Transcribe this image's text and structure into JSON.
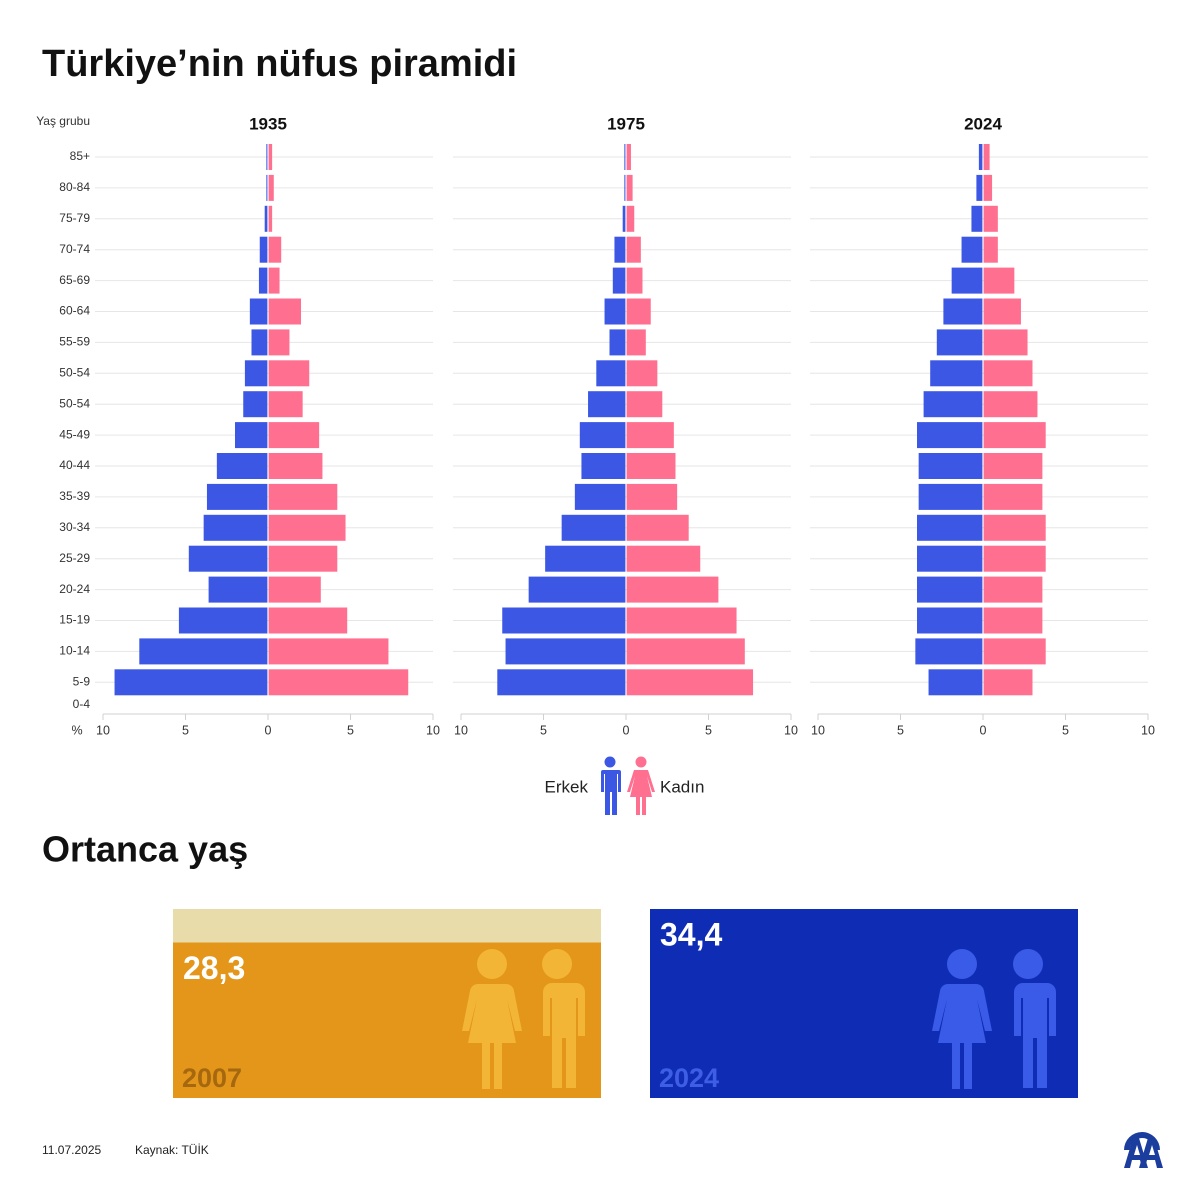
{
  "title": "Türkiye’nin nüfus piramidi",
  "chart_data": [
    {
      "type": "population_pyramid",
      "title": "1935",
      "y_label": "Yaş grubu",
      "x_label": "%",
      "categories": [
        "85+",
        "80-84",
        "75-79",
        "70-74",
        "65-69",
        "60-64",
        "55-59",
        "50-54",
        "50-54",
        "45-49",
        "40-44",
        "35-39",
        "30-34",
        "25-29",
        "20-24",
        "15-19",
        "10-14",
        "5-9",
        "0-4"
      ],
      "series": [
        {
          "name": "Erkek",
          "color": "#3b57e3",
          "values": [
            0.1,
            0.1,
            0.2,
            0.5,
            0.55,
            1.1,
            1.0,
            1.4,
            1.5,
            2.0,
            3.1,
            3.7,
            3.9,
            4.8,
            3.6,
            5.4,
            7.8,
            9.3,
            null
          ]
        },
        {
          "name": "Kadın",
          "color": "#ff7090",
          "values": [
            0.25,
            0.35,
            0.25,
            0.8,
            0.7,
            2.0,
            1.3,
            2.5,
            2.1,
            3.1,
            3.3,
            4.2,
            4.7,
            4.2,
            3.2,
            4.8,
            7.3,
            8.5,
            null
          ]
        }
      ],
      "xlim": [
        -10,
        10
      ],
      "xticks": [
        {
          "value": -10,
          "label": "10"
        },
        {
          "value": -5,
          "label": "5"
        },
        0,
        5,
        10
      ],
      "grid": true
    },
    {
      "type": "population_pyramid",
      "title": "1975",
      "series": [
        {
          "color": "#3b57e3",
          "values": [
            0.1,
            0.1,
            0.2,
            0.7,
            0.8,
            1.3,
            1.0,
            1.8,
            2.3,
            2.8,
            2.7,
            3.1,
            3.9,
            4.9,
            5.9,
            7.5,
            7.3,
            7.8,
            null
          ]
        },
        {
          "color": "#ff7090",
          "values": [
            0.3,
            0.4,
            0.5,
            0.9,
            1.0,
            1.5,
            1.2,
            1.9,
            2.2,
            2.9,
            3.0,
            3.1,
            3.8,
            4.5,
            5.6,
            6.7,
            7.2,
            7.7,
            null
          ]
        }
      ],
      "xlim": [
        -10,
        10
      ],
      "xticks": [
        {
          "value": -10,
          "label": "10"
        },
        {
          "value": -5,
          "label": "5"
        },
        0,
        5,
        10
      ],
      "grid": true
    },
    {
      "type": "population_pyramid",
      "title": "2024",
      "series": [
        {
          "color": "#3b57e3",
          "values": [
            0.25,
            0.4,
            0.7,
            1.3,
            1.9,
            2.4,
            2.8,
            3.2,
            3.6,
            4.0,
            3.9,
            3.9,
            4.0,
            4.0,
            4.0,
            4.0,
            4.1,
            3.3,
            null
          ]
        },
        {
          "color": "#ff7090",
          "values": [
            0.4,
            0.55,
            0.9,
            0.9,
            1.9,
            2.3,
            2.7,
            3.0,
            3.3,
            3.8,
            3.6,
            3.6,
            3.8,
            3.8,
            3.6,
            3.6,
            3.8,
            3.0,
            null
          ]
        }
      ],
      "xlim": [
        -10,
        10
      ],
      "xticks": [
        {
          "value": -10,
          "label": "10"
        },
        {
          "value": -5,
          "label": "5"
        },
        0,
        5,
        10
      ],
      "grid": true
    },
    {
      "type": "bar",
      "title": "Ortanca yaş",
      "categories": [
        "2007",
        "2024"
      ],
      "values": [
        28.3,
        34.4
      ],
      "value_labels": [
        "28,3",
        "34,4"
      ],
      "colors": [
        "#e3961a",
        "#0f2db4"
      ],
      "track_color": "#e8ddaa",
      "label_colors": [
        "#a5680f",
        "#3f5ee6"
      ]
    }
  ],
  "footer": {
    "date": "11.07.2025",
    "source": "Kaynak: TÜİK"
  }
}
